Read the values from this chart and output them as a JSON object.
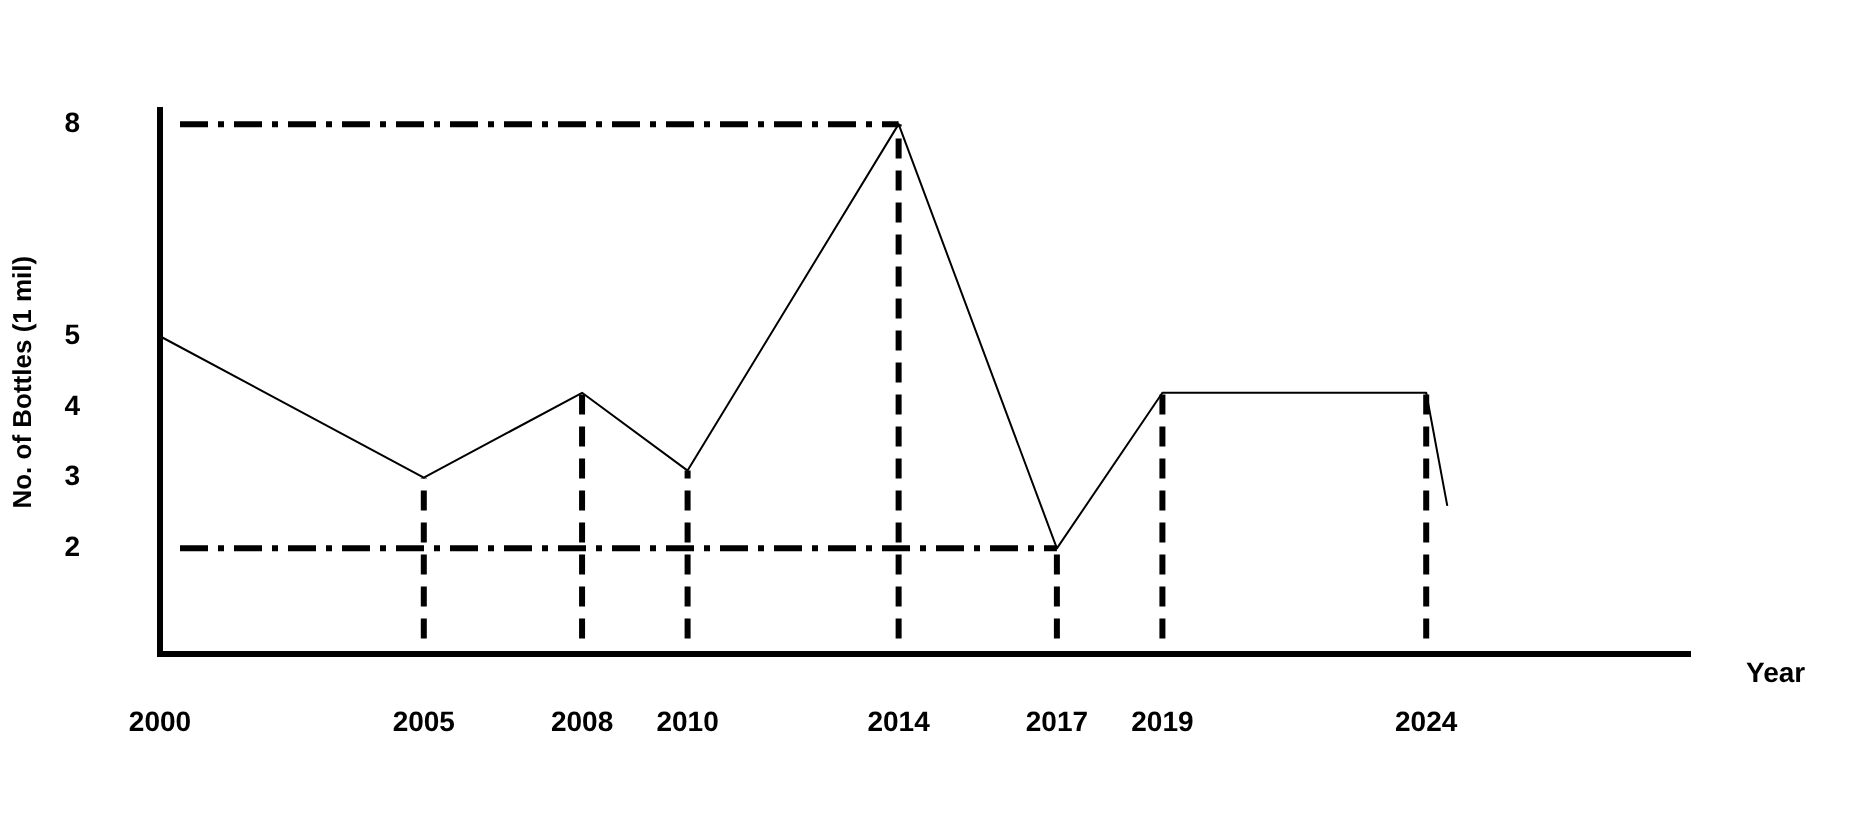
{
  "chart_data": {
    "type": "line",
    "xlabel": "Year",
    "ylabel": "No. of Bottles (1 mil)",
    "x": [
      2000,
      2005,
      2008,
      2010,
      2014,
      2017,
      2019,
      2024,
      2024.4
    ],
    "series": [
      {
        "color": "#000000",
        "values": [
          5,
          3,
          4.2,
          3.1,
          8,
          2,
          4.2,
          4.2,
          2.6
        ]
      }
    ],
    "xlim": [
      2000,
      2029
    ],
    "xticks": [
      2000,
      2005,
      2008,
      2010,
      2014,
      2017,
      2019,
      2024
    ],
    "ylim": [
      0.5,
      8.2
    ],
    "yticks": [
      2,
      3,
      4,
      5,
      8
    ],
    "ref_lines": [
      {
        "axis": "y",
        "value": 8,
        "line_style": "dashdot"
      },
      {
        "axis": "y",
        "value": 2,
        "line_style": "dashdot"
      },
      {
        "axis": "x",
        "value": 2005,
        "line_style": "dashed"
      },
      {
        "axis": "x",
        "value": 2008,
        "line_style": "dashed"
      },
      {
        "axis": "x",
        "value": 2010,
        "line_style": "dashed"
      },
      {
        "axis": "x",
        "value": 2014,
        "line_style": "dashed"
      },
      {
        "axis": "x",
        "value": 2017,
        "line_style": "dashed"
      },
      {
        "axis": "x",
        "value": 2019,
        "line_style": "dashed"
      },
      {
        "axis": "x",
        "value": 2024,
        "line_style": "dashed"
      }
    ],
    "grid": false,
    "legend": false,
    "marker": "none",
    "line_style": "solid"
  }
}
